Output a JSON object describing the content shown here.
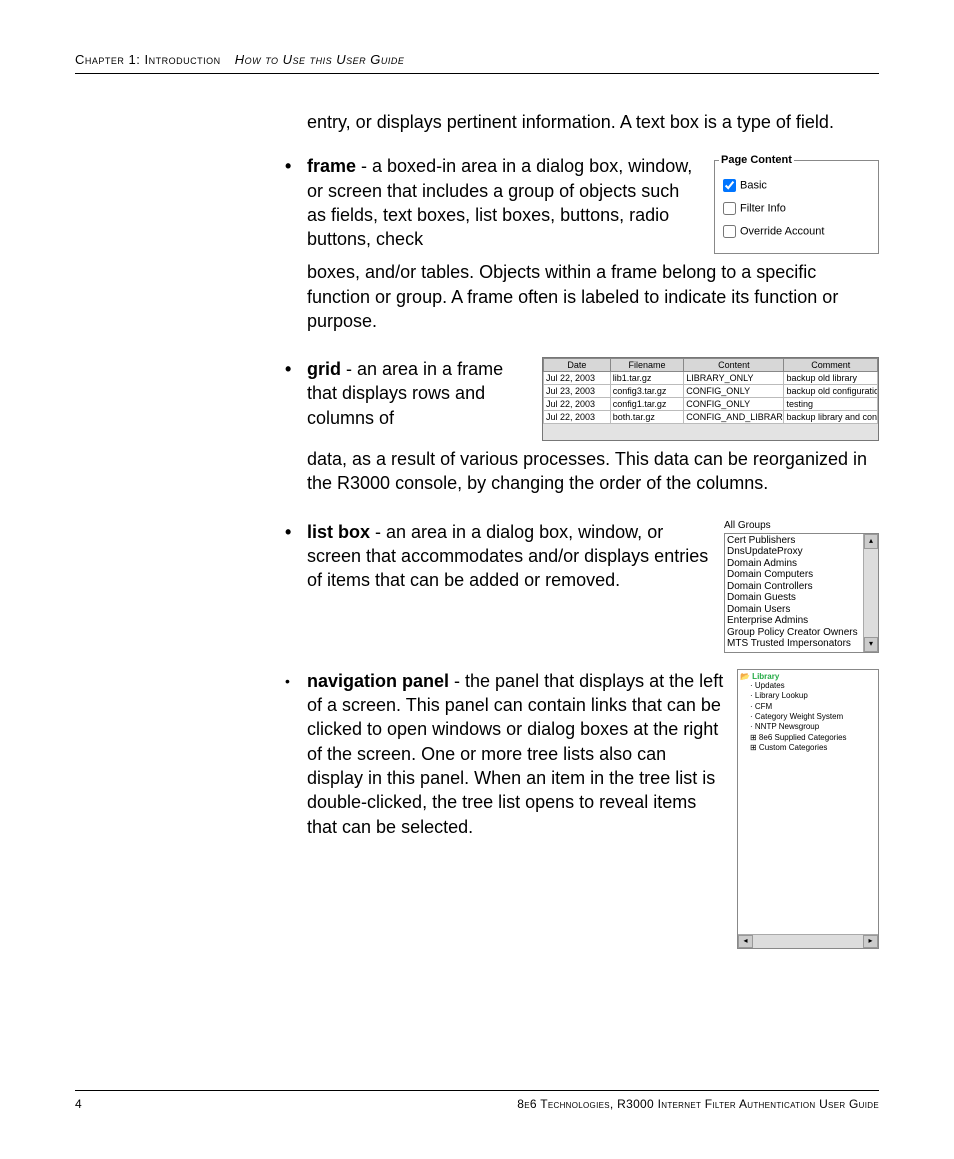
{
  "header": {
    "chapter": "Chapter 1: Introduction",
    "section": "How to Use this User Guide"
  },
  "intro_continuation": "entry, or displays pertinent information. A text box is a type of field.",
  "entries": {
    "frame": {
      "term": "frame",
      "lead": " - a boxed-in area in a dialog box, window, or screen that includes a group of objects such as fields, text boxes, list boxes, buttons, radio buttons, check",
      "rest": "boxes, and/or tables. Objects within a frame belong to a specific function or group. A frame often is labeled to indicate its function or purpose."
    },
    "grid": {
      "term": "grid",
      "lead": " - an area in a frame that displays rows and columns of",
      "rest": "data, as a result of various processes. This data can be reorganized in the R3000 console, by changing the order of the columns."
    },
    "listbox": {
      "term": "list box",
      "text": " - an area in a dialog box, window, or screen that accommodates and/or displays entries of items that can be added or removed."
    },
    "navpanel": {
      "term": "navigation panel",
      "text": " - the panel that displays at the left of a screen. This panel can contain links that can be clicked to open windows or dialog boxes at the right of the screen. One or more tree lists also can display in this panel. When an item in the tree list is double-clicked, the tree list opens to reveal items that can be selected."
    }
  },
  "frame_figure": {
    "legend": "Page Content",
    "options": [
      {
        "label": "Basic",
        "checked": true
      },
      {
        "label": "Filter Info",
        "checked": false
      },
      {
        "label": "Override Account",
        "checked": false
      }
    ]
  },
  "grid_figure": {
    "columns": [
      "Date",
      "Filename",
      "Content",
      "Comment"
    ],
    "col_widths": [
      "20%",
      "22%",
      "30%",
      "28%"
    ],
    "rows": [
      [
        "Jul 22, 2003",
        "lib1.tar.gz",
        "LIBRARY_ONLY",
        "backup old library"
      ],
      [
        "Jul 23, 2003",
        "config3.tar.gz",
        "CONFIG_ONLY",
        "backup old configurations"
      ],
      [
        "Jul 22, 2003",
        "config1.tar.gz",
        "CONFIG_ONLY",
        "testing"
      ],
      [
        "Jul 22, 2003",
        "both.tar.gz",
        "CONFIG_AND_LIBRARY",
        "backup library and configs"
      ]
    ]
  },
  "list_figure": {
    "label": "All Groups",
    "items": [
      "Cert Publishers",
      "DnsUpdateProxy",
      "Domain Admins",
      "Domain Computers",
      "Domain Controllers",
      "Domain Guests",
      "Domain Users",
      "Enterprise Admins",
      "Group Policy Creator Owners",
      "MTS Trusted Impersonators"
    ]
  },
  "nav_figure": {
    "root": "Library",
    "nodes": [
      "Updates",
      "Library Lookup",
      "CFM",
      "Category Weight System",
      "NNTP Newsgroup",
      "8e6 Supplied Categories",
      "Custom Categories"
    ]
  },
  "footer": {
    "page": "4",
    "text": "8e6 Technologies, R3000 Internet Filter Authentication User Guide"
  }
}
